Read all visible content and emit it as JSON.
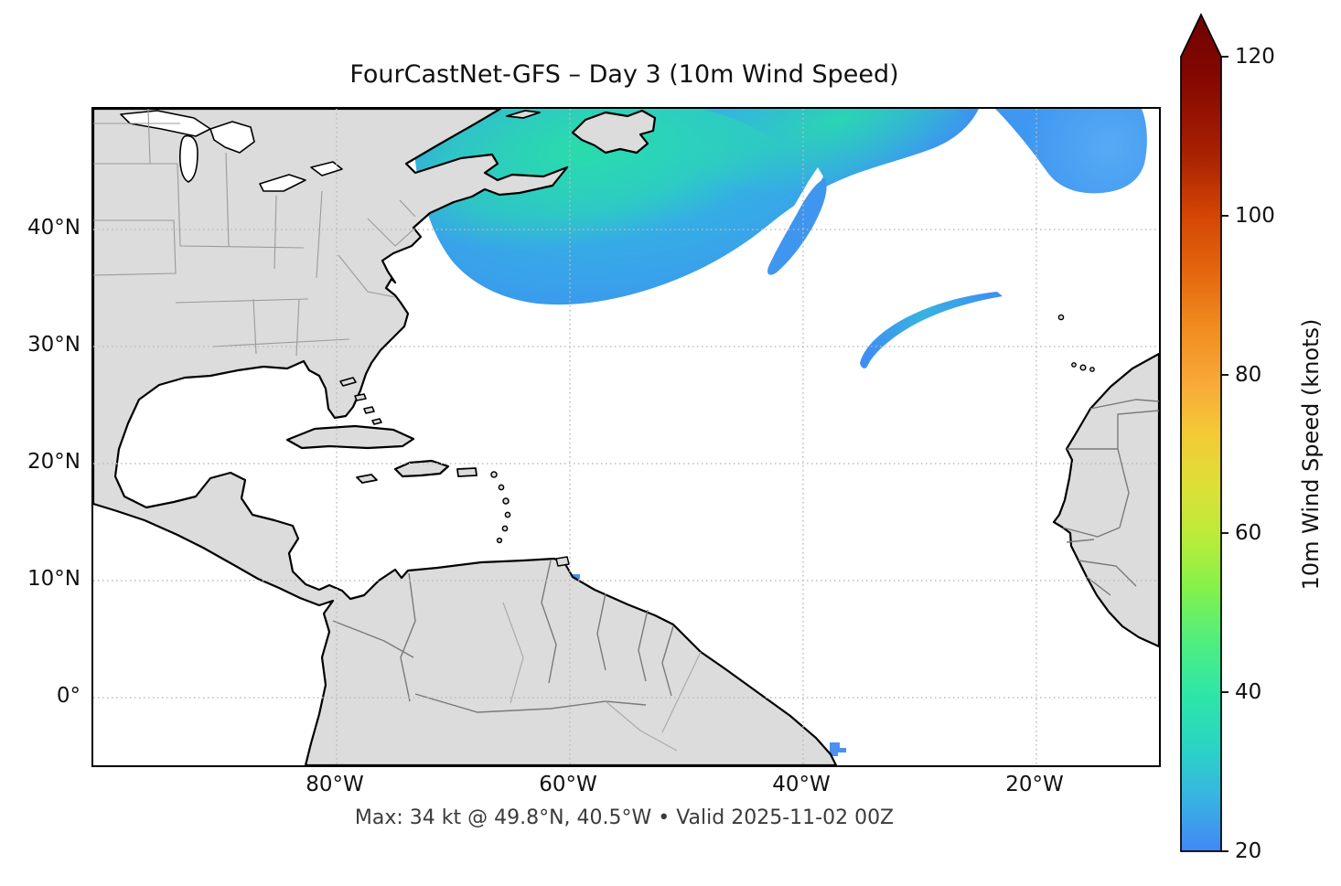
{
  "figure": {
    "title": "FourCastNet-GFS – Day 3 (10m Wind Speed)",
    "caption": "Max: 34 kt @ 49.8°N, 40.5°W • Valid 2025-11-02 00Z"
  },
  "axes": {
    "x_tick_labels": [
      "80°W",
      "60°W",
      "40°W",
      "20°W"
    ],
    "y_tick_labels": [
      "40°N",
      "30°N",
      "20°N",
      "10°N",
      "0°"
    ]
  },
  "colorbar": {
    "label": "10m Wind Speed (knots)",
    "tick_labels": [
      "120",
      "100",
      "80",
      "60",
      "40",
      "20"
    ],
    "min": 20,
    "max": 120,
    "extend": "max",
    "above_color": "#6f0301",
    "stops": [
      {
        "v": 20,
        "c": "#4287f5"
      },
      {
        "v": 27,
        "c": "#38b4e2"
      },
      {
        "v": 33,
        "c": "#2bd2c6"
      },
      {
        "v": 40,
        "c": "#2ce6a8"
      },
      {
        "v": 47,
        "c": "#4fee7f"
      },
      {
        "v": 54,
        "c": "#84f14b"
      },
      {
        "v": 60,
        "c": "#b7ec3b"
      },
      {
        "v": 67,
        "c": "#dce036"
      },
      {
        "v": 74,
        "c": "#f4c935"
      },
      {
        "v": 80,
        "c": "#f8ab3a"
      },
      {
        "v": 88,
        "c": "#f08a1e"
      },
      {
        "v": 95,
        "c": "#e4650e"
      },
      {
        "v": 102,
        "c": "#d44605"
      },
      {
        "v": 110,
        "c": "#a82102"
      },
      {
        "v": 120,
        "c": "#840701"
      }
    ]
  },
  "map": {
    "colors": {
      "ocean": "#ffffff",
      "land": "#dcdcdc",
      "coast": "#000000",
      "border": "#7a7a7a",
      "state": "#9a9a9a",
      "lake": "#ffffff",
      "grid": "#bcbcbc",
      "wind-low": "#3e8ff2",
      "wind-mid": "#2fc3dc",
      "wind-core": "#29dcab",
      "wind-patch": "#3e97f0",
      "wind-speck": "#4a90f5"
    }
  },
  "chart_data": {
    "type": "heatmap",
    "title": "FourCastNet-GFS – Day 3 (10m Wind Speed)",
    "model": "FourCastNet-GFS",
    "forecast_day": 3,
    "variable": "10m wind speed",
    "units": "knots",
    "valid": "2025-11-02 00Z",
    "max": {
      "value_kt": 34,
      "lat": 49.8,
      "lon": -40.5
    },
    "extent": {
      "lon_min": -101,
      "lon_max": -9,
      "lat_min": -6,
      "lat_max": 50.3
    },
    "x_ticks_lon": [
      -80,
      -60,
      -40,
      -20
    ],
    "y_ticks_lat": [
      40,
      30,
      20,
      10,
      0
    ],
    "grid": "dotted",
    "shaded_threshold_kt": 20,
    "colorbar": {
      "min": 20,
      "max": 120,
      "ticks": [
        20,
        40,
        60,
        80,
        100,
        120
      ],
      "label": "10m Wind Speed (knots)",
      "extend": "max"
    },
    "features": [
      {
        "name": "nw-atlantic-swath",
        "desc": "large wind maximum southeast of Nova Scotia / Newfoundland sweeping east-northeast",
        "lat_range": [
          33.7,
          50.2
        ],
        "lon_range": [
          -73,
          -24
        ],
        "peak_kt": 34
      },
      {
        "name": "ne-atlantic-patch",
        "desc": "patch at northeastern edge of domain",
        "lat_range": [
          42.8,
          50.2
        ],
        "lon_range": [
          -23,
          -10
        ],
        "peak_kt": 26
      },
      {
        "name": "central-atlantic-band",
        "desc": "narrow curved band",
        "lat_range": [
          28.8,
          34.6
        ],
        "lon_range": [
          -35,
          -22.8
        ],
        "peak_kt": 25
      },
      {
        "name": "caribbean-speck",
        "lat_range": [
          10.2,
          10.6
        ],
        "lon_range": [
          -59.6,
          -58.8
        ],
        "peak_kt": 21
      },
      {
        "name": "brazil-coast-speck",
        "lat_range": [
          -4.8,
          -3.9
        ],
        "lon_range": [
          -37.2,
          -36.2
        ],
        "peak_kt": 22
      }
    ]
  }
}
